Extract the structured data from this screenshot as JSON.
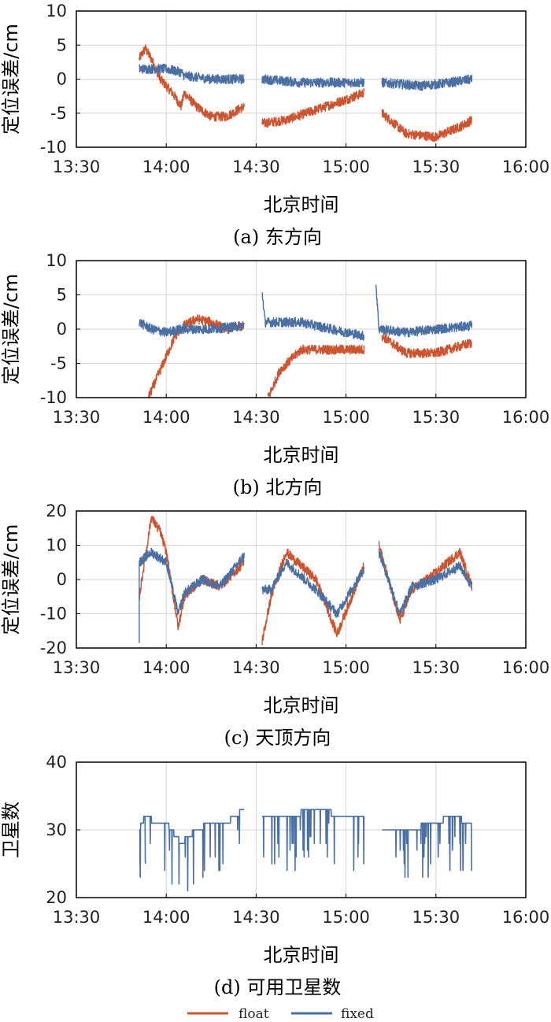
{
  "colors": {
    "float": "#cc5530",
    "fixed": "#4a6fa3",
    "grid": "#d4d4d4",
    "axis": "#000000"
  },
  "legend": {
    "float_label": "float",
    "fixed_label": "fixed"
  },
  "chart_data": [
    {
      "type": "line",
      "caption": "(a) 东方向",
      "xlabel": "北京时间",
      "ylabel": "定位误差/cm",
      "xticks": [
        "13:30",
        "14:00",
        "14:30",
        "15:00",
        "15:30",
        "16:00"
      ],
      "yticks": [
        "10",
        "5",
        "0",
        "-5",
        "-10"
      ],
      "xlim": [
        "13:30",
        "16:00"
      ],
      "ylim": [
        -10,
        10
      ],
      "grid": true,
      "series": [
        {
          "name": "float",
          "x": [
            "13:51",
            "13:53",
            "13:55",
            "13:58",
            "14:02",
            "14:05",
            "14:06",
            "14:10",
            "14:15",
            "14:20",
            "14:26",
            "14:32",
            "14:40",
            "14:50",
            "15:00",
            "15:06",
            "15:12",
            "15:20",
            "15:30",
            "15:38",
            "15:42"
          ],
          "y": [
            3,
            4.5,
            3,
            0,
            -2,
            -4,
            -2,
            -4,
            -5.5,
            -5.5,
            -4,
            -6.5,
            -6,
            -4.5,
            -3,
            -2,
            -5,
            -8,
            -8.5,
            -7,
            -6
          ]
        },
        {
          "name": "fixed",
          "x": [
            "13:51",
            "13:55",
            "14:00",
            "14:05",
            "14:06",
            "14:15",
            "14:26",
            "14:32",
            "14:45",
            "15:00",
            "15:06",
            "15:12",
            "15:25",
            "15:35",
            "15:42"
          ],
          "y": [
            1.5,
            1.5,
            1.5,
            1,
            0.5,
            0,
            0,
            0,
            -0.5,
            -0.5,
            -0.5,
            -0.5,
            -1,
            -0.5,
            0
          ]
        }
      ]
    },
    {
      "type": "line",
      "caption": "(b) 北方向",
      "xlabel": "北京时间",
      "ylabel": "定位误差/cm",
      "xticks": [
        "13:30",
        "14:00",
        "14:30",
        "15:00",
        "15:30",
        "16:00"
      ],
      "yticks": [
        "10",
        "5",
        "0",
        "-5",
        "-10"
      ],
      "xlim": [
        "13:30",
        "16:00"
      ],
      "ylim": [
        -10,
        10
      ],
      "grid": true,
      "series": [
        {
          "name": "float",
          "x": [
            "13:54",
            "13:57",
            "14:00",
            "14:03",
            "14:06",
            "14:10",
            "14:15",
            "14:20",
            "14:26",
            "14:34",
            "14:38",
            "14:45",
            "14:55",
            "15:06",
            "15:12",
            "15:20",
            "15:30",
            "15:42"
          ],
          "y": [
            -10,
            -7,
            -4,
            -1,
            0.5,
            1.5,
            1,
            0,
            0.5,
            -10,
            -6,
            -3,
            -3,
            -3,
            -1,
            -3.5,
            -3.5,
            -2
          ]
        },
        {
          "name": "fixed",
          "x": [
            "13:51",
            "13:55",
            "14:00",
            "14:05",
            "14:06",
            "14:15",
            "14:26",
            "14:32",
            "14:33",
            "14:45",
            "14:55",
            "15:06",
            "15:10",
            "15:11",
            "15:20",
            "15:30",
            "15:42"
          ],
          "y": [
            1,
            0,
            -0.5,
            0,
            0,
            0,
            0.5,
            5.5,
            1,
            1,
            0,
            -1,
            6.5,
            0,
            -0.5,
            0,
            0.5
          ]
        }
      ]
    },
    {
      "type": "line",
      "caption": "(c) 天顶方向",
      "xlabel": "北京时间",
      "ylabel": "定位误差/cm",
      "xticks": [
        "13:30",
        "14:00",
        "14:30",
        "15:00",
        "15:30",
        "16:00"
      ],
      "yticks": [
        "20",
        "10",
        "0",
        "-10",
        "-20"
      ],
      "xlim": [
        "13:30",
        "16:00"
      ],
      "ylim": [
        -20,
        20
      ],
      "grid": true,
      "series": [
        {
          "name": "float",
          "x": [
            "13:51",
            "13:55",
            "13:58",
            "14:00",
            "14:04",
            "14:06",
            "14:12",
            "14:18",
            "14:26",
            "14:32",
            "14:35",
            "14:40",
            "14:50",
            "14:57",
            "15:06",
            "15:11",
            "15:18",
            "15:22",
            "15:30",
            "15:38",
            "15:42"
          ],
          "y": [
            -5,
            18,
            14,
            8,
            -14,
            -5,
            0,
            -2,
            5,
            -18,
            -5,
            8,
            0,
            -16,
            4,
            10,
            -12,
            -3,
            2,
            8,
            -2
          ]
        },
        {
          "name": "fixed",
          "x": [
            "13:51",
            "13:51",
            "13:55",
            "14:00",
            "14:04",
            "14:06",
            "14:12",
            "14:18",
            "14:26",
            "14:32",
            "14:35",
            "14:40",
            "14:50",
            "14:57",
            "15:06",
            "15:11",
            "15:18",
            "15:22",
            "15:30",
            "15:38",
            "15:42"
          ],
          "y": [
            -18,
            5,
            8,
            5,
            -10,
            -4,
            0,
            -2,
            7,
            -3,
            -3,
            5,
            -3,
            -10,
            3,
            8,
            -10,
            -2,
            0,
            4,
            -2
          ]
        }
      ]
    },
    {
      "type": "line",
      "caption": "(d) 可用卫星数",
      "xlabel": "北京时间",
      "ylabel": "卫星数",
      "xticks": [
        "13:30",
        "14:00",
        "14:30",
        "15:00",
        "15:30",
        "16:00"
      ],
      "yticks": [
        "40",
        "30",
        "20"
      ],
      "xlim": [
        "13:30",
        "16:00"
      ],
      "ylim": [
        20,
        40
      ],
      "grid": true,
      "series": [
        {
          "name": "fixed",
          "x": [
            "13:51",
            "13:53",
            "13:57",
            "14:00",
            "14:05",
            "14:10",
            "14:15",
            "14:20",
            "14:26",
            "14:32",
            "14:40",
            "14:50",
            "15:00",
            "15:06",
            "15:12",
            "15:20",
            "15:30",
            "15:35",
            "15:42"
          ],
          "y": [
            30,
            32,
            31,
            31,
            28,
            30,
            31,
            31,
            33,
            32,
            32,
            33,
            32,
            32,
            30,
            30,
            31,
            32,
            31
          ]
        }
      ]
    }
  ]
}
